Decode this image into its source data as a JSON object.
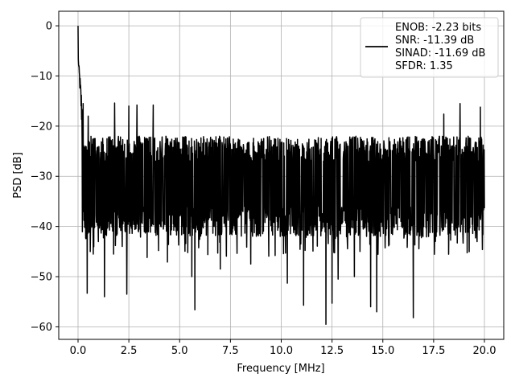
{
  "chart_data": {
    "type": "line",
    "xlabel": "Frequency [MHz]",
    "ylabel": "PSD [dB]",
    "xlim": [
      -0.95,
      20.95
    ],
    "ylim": [
      -62.5,
      2.9
    ],
    "xticks": [
      0.0,
      2.5,
      5.0,
      7.5,
      10.0,
      12.5,
      15.0,
      17.5,
      20.0
    ],
    "xtick_labels": [
      "0.0",
      "2.5",
      "5.0",
      "7.5",
      "10.0",
      "12.5",
      "15.0",
      "17.5",
      "20.0"
    ],
    "yticks": [
      0,
      -10,
      -20,
      -30,
      -40,
      -50,
      -60
    ],
    "ytick_labels": [
      "0",
      "−10",
      "−20",
      "−30",
      "−40",
      "−50",
      "−60"
    ],
    "grid": true,
    "legend_position": "upper-right",
    "legend_lines": [
      "ENOB: -2.23 bits",
      "SNR: -11.39 dB",
      "SINAD: -11.69 dB",
      "SFDR: 1.35"
    ],
    "series": [
      {
        "color": "#000000",
        "trace_summary": {
          "x_start": 0.0,
          "x_end": 20.0,
          "peak": [
            0.0,
            0.0
          ],
          "upper_envelope": -21,
          "typical_lower": -39,
          "dips": [
            [
              0.45,
              -53.3
            ],
            [
              1.3,
              -54.0
            ],
            [
              0.6,
              -45
            ],
            [
              0.75,
              -45.5
            ],
            [
              2.4,
              -53.5
            ],
            [
              3.4,
              -46.2
            ],
            [
              4.4,
              -47.1
            ],
            [
              5.6,
              -50.0
            ],
            [
              5.75,
              -56.6
            ],
            [
              7.0,
              -48.5
            ],
            [
              8.5,
              -47.5
            ],
            [
              10.3,
              -51.3
            ],
            [
              11.1,
              -55.7
            ],
            [
              12.2,
              -59.5
            ],
            [
              12.5,
              -55.3
            ],
            [
              12.8,
              -50.5
            ],
            [
              13.6,
              -50.0
            ],
            [
              14.4,
              -56.0
            ],
            [
              14.7,
              -57.0
            ],
            [
              16.5,
              -58.2
            ],
            [
              18.8,
              -50.8
            ],
            [
              19.8,
              -50.6
            ]
          ],
          "peaks": [
            [
              0.25,
              -15.5
            ],
            [
              0.5,
              -18.0
            ],
            [
              1.8,
              -15.4
            ],
            [
              2.5,
              -16.0
            ],
            [
              2.9,
              -15.8
            ],
            [
              3.7,
              -15.8
            ],
            [
              18.0,
              -17.6
            ],
            [
              18.8,
              -15.5
            ],
            [
              19.8,
              -16.2
            ]
          ]
        }
      }
    ]
  }
}
